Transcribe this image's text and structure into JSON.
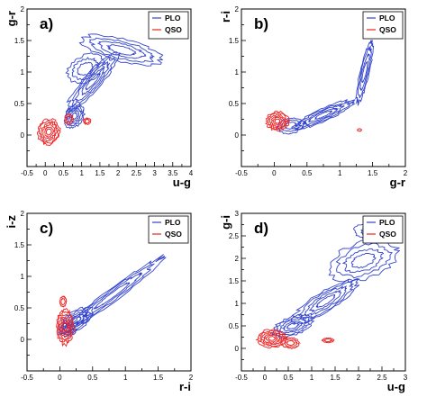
{
  "colors": {
    "PLO": "#3344cc",
    "QSO": "#ee2222"
  },
  "chart_data": [
    {
      "type": "scatter",
      "panel_label": "a)",
      "xlabel": "u-g",
      "ylabel": "g-r",
      "xlim": [
        -0.5,
        4
      ],
      "ylim": [
        -0.5,
        2
      ],
      "xticks": [
        -0.5,
        0,
        0.5,
        1,
        1.5,
        2,
        2.5,
        3,
        3.5,
        4
      ],
      "yticks": [
        -0.5,
        0,
        0.5,
        1,
        1.5,
        2
      ],
      "xtick_labels": [
        "-0.5",
        "0",
        "0.5",
        "1",
        "1.5",
        "2",
        "2.5",
        "3",
        "3.5",
        "4"
      ],
      "ytick_labels": [
        "",
        "0",
        "0.5",
        "1",
        "1.5",
        "2"
      ],
      "legend": {
        "position": "top-right",
        "entries": [
          "PLO",
          "QSO"
        ]
      },
      "series": [
        {
          "name": "PLO",
          "clusters": [
            {
              "cx": 2.1,
              "cy": 1.35,
              "rx": 1.1,
              "ry": 0.18,
              "rot": -8,
              "levels": 4
            },
            {
              "cx": 1.3,
              "cy": 0.85,
              "rx": 0.8,
              "ry": 0.17,
              "rot": 32,
              "levels": 5
            },
            {
              "cx": 0.8,
              "cy": 0.3,
              "rx": 0.28,
              "ry": 0.17,
              "rot": 20,
              "levels": 5
            },
            {
              "cx": 1.1,
              "cy": 1.05,
              "rx": 0.5,
              "ry": 0.22,
              "rot": 10,
              "levels": 3
            }
          ]
        },
        {
          "name": "QSO",
          "clusters": [
            {
              "cx": 0.1,
              "cy": 0.05,
              "rx": 0.3,
              "ry": 0.2,
              "rot": 5,
              "levels": 6
            },
            {
              "cx": 0.65,
              "cy": 0.25,
              "rx": 0.12,
              "ry": 0.08,
              "rot": 0,
              "levels": 2
            },
            {
              "cx": 1.15,
              "cy": 0.22,
              "rx": 0.1,
              "ry": 0.05,
              "rot": 0,
              "levels": 2
            }
          ]
        }
      ]
    },
    {
      "type": "scatter",
      "panel_label": "b)",
      "xlabel": "g-r",
      "ylabel": "r-i",
      "xlim": [
        -0.5,
        2
      ],
      "ylim": [
        -0.5,
        2
      ],
      "xticks": [
        -0.5,
        0,
        0.5,
        1,
        1.5,
        2
      ],
      "yticks": [
        -0.5,
        0,
        0.5,
        1,
        1.5,
        2
      ],
      "xtick_labels": [
        "-0.5",
        "0",
        "0.5",
        "1",
        "1.5",
        "2"
      ],
      "ytick_labels": [
        "",
        "0",
        "0.5",
        "1",
        "1.5",
        "2"
      ],
      "legend": {
        "position": "top-right",
        "entries": [
          "PLO",
          "QSO"
        ]
      },
      "series": [
        {
          "name": "PLO",
          "clusters": [
            {
              "cx": 1.38,
              "cy": 1.0,
              "rx": 0.5,
              "ry": 0.07,
              "rot": 78,
              "levels": 4
            },
            {
              "cx": 0.75,
              "cy": 0.32,
              "rx": 0.5,
              "ry": 0.1,
              "rot": 25,
              "levels": 5
            },
            {
              "cx": 0.25,
              "cy": 0.15,
              "rx": 0.2,
              "ry": 0.12,
              "rot": 10,
              "levels": 3
            }
          ]
        },
        {
          "name": "QSO",
          "clusters": [
            {
              "cx": 0.05,
              "cy": 0.22,
              "rx": 0.17,
              "ry": 0.15,
              "rot": 0,
              "levels": 6
            },
            {
              "cx": 1.3,
              "cy": 0.08,
              "rx": 0.03,
              "ry": 0.02,
              "rot": 0,
              "levels": 1
            }
          ]
        }
      ]
    },
    {
      "type": "scatter",
      "panel_label": "c)",
      "xlabel": "r-i",
      "ylabel": "i-z",
      "xlim": [
        -0.5,
        2
      ],
      "ylim": [
        -0.5,
        2
      ],
      "xticks": [
        -0.5,
        0,
        0.5,
        1,
        1.5,
        2
      ],
      "yticks": [
        -0.5,
        0,
        0.5,
        1,
        1.5,
        2
      ],
      "xtick_labels": [
        "-0.5",
        "0",
        "0.5",
        "1",
        "1.5",
        "2"
      ],
      "ytick_labels": [
        "",
        "0",
        "0.5",
        "1",
        "1.5",
        "2"
      ],
      "legend": {
        "position": "top-right",
        "entries": [
          "PLO",
          "QSO"
        ]
      },
      "series": [
        {
          "name": "PLO",
          "clusters": [
            {
              "cx": 0.8,
              "cy": 0.7,
              "rx": 0.95,
              "ry": 0.1,
              "rot": 38,
              "levels": 4
            },
            {
              "cx": 0.25,
              "cy": 0.3,
              "rx": 0.3,
              "ry": 0.14,
              "rot": 35,
              "levels": 5
            },
            {
              "cx": 0.12,
              "cy": 0.15,
              "rx": 0.12,
              "ry": 0.1,
              "rot": 0,
              "levels": 3
            }
          ]
        },
        {
          "name": "QSO",
          "clusters": [
            {
              "cx": 0.08,
              "cy": 0.2,
              "rx": 0.13,
              "ry": 0.28,
              "rot": 0,
              "levels": 6
            },
            {
              "cx": 0.05,
              "cy": 0.6,
              "rx": 0.05,
              "ry": 0.08,
              "rot": 0,
              "levels": 2
            }
          ]
        }
      ]
    },
    {
      "type": "scatter",
      "panel_label": "d)",
      "xlabel": "u-g",
      "ylabel": "g-i",
      "xlim": [
        -0.5,
        3
      ],
      "ylim": [
        -0.5,
        3
      ],
      "xticks": [
        -0.5,
        0,
        0.5,
        1,
        1.5,
        2,
        2.5,
        3
      ],
      "yticks": [
        -0.5,
        0,
        0.5,
        1,
        1.5,
        2,
        2.5,
        3
      ],
      "xtick_labels": [
        "-0.5",
        "0",
        "0.5",
        "1",
        "1.5",
        "2",
        "2.5",
        "3"
      ],
      "ytick_labels": [
        "",
        "0",
        "0.5",
        "1",
        "1.5",
        "2",
        "2.5",
        "3"
      ],
      "legend": {
        "position": "top-right",
        "entries": [
          "PLO",
          "QSO"
        ]
      },
      "series": [
        {
          "name": "PLO",
          "clusters": [
            {
              "cx": 2.1,
              "cy": 1.95,
              "rx": 0.75,
              "ry": 0.4,
              "rot": 20,
              "levels": 4
            },
            {
              "cx": 1.3,
              "cy": 1.05,
              "rx": 0.8,
              "ry": 0.22,
              "rot": 33,
              "levels": 5
            },
            {
              "cx": 0.6,
              "cy": 0.5,
              "rx": 0.45,
              "ry": 0.2,
              "rot": 20,
              "levels": 5
            },
            {
              "cx": 2.3,
              "cy": 2.6,
              "rx": 0.4,
              "ry": 0.18,
              "rot": 0,
              "levels": 2
            }
          ]
        },
        {
          "name": "QSO",
          "clusters": [
            {
              "cx": 0.15,
              "cy": 0.22,
              "rx": 0.3,
              "ry": 0.2,
              "rot": 0,
              "levels": 6
            },
            {
              "cx": 0.55,
              "cy": 0.12,
              "rx": 0.18,
              "ry": 0.12,
              "rot": 0,
              "levels": 3
            },
            {
              "cx": 1.35,
              "cy": 0.18,
              "rx": 0.12,
              "ry": 0.05,
              "rot": 0,
              "levels": 2
            }
          ]
        }
      ]
    }
  ]
}
